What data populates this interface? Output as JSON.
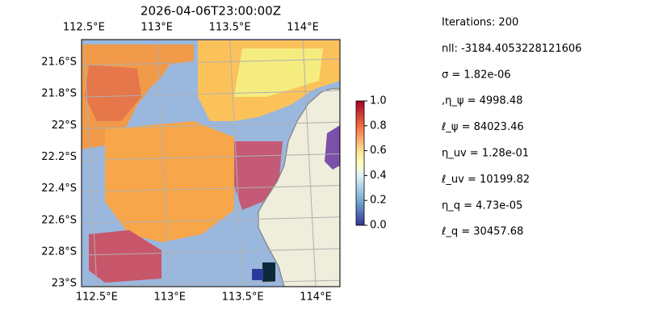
{
  "map": {
    "title": "2026-04-06T23:00:00Z",
    "lon_ticks": [
      {
        "value": 112.5,
        "label": "112.5°E"
      },
      {
        "value": 113,
        "label": "113°E"
      },
      {
        "value": 113.5,
        "label": "113.5°E"
      },
      {
        "value": 114,
        "label": "114°E"
      }
    ],
    "lat_ticks": [
      {
        "value": -21.6,
        "label": "21.6°S"
      },
      {
        "value": -21.8,
        "label": "21.8°S"
      },
      {
        "value": -22,
        "label": "22°S"
      },
      {
        "value": -22.2,
        "label": "22.2°S"
      },
      {
        "value": -22.4,
        "label": "22.4°S"
      },
      {
        "value": -22.6,
        "label": "22.6°S"
      },
      {
        "value": -22.8,
        "label": "22.8°S"
      },
      {
        "value": -23,
        "label": "23°S"
      }
    ],
    "xlim": [
      112.44,
      114.21
    ],
    "ylim": [
      -23.02,
      -21.457
    ]
  },
  "colorbar": {
    "range": [
      0,
      1
    ],
    "ticks": [
      {
        "value": 0,
        "label": "0.0"
      },
      {
        "value": 0.2,
        "label": "0.2"
      },
      {
        "value": 0.4,
        "label": "0.4"
      },
      {
        "value": 0.6,
        "label": "0.6"
      },
      {
        "value": 0.8,
        "label": "0.8"
      },
      {
        "value": 1,
        "label": "1.0"
      }
    ]
  },
  "info": [
    "Iterations: 200",
    "nll: -3184.4053228121606",
    "σ = 1.82e-06",
    ",η_ψ = 4998.48",
    "ℓ_ψ = 84023.46",
    "η_uv = 1.28e-01",
    "ℓ_uv = 10199.82",
    "η_q = 4.73e-05",
    "ℓ_q = 30457.68"
  ]
}
